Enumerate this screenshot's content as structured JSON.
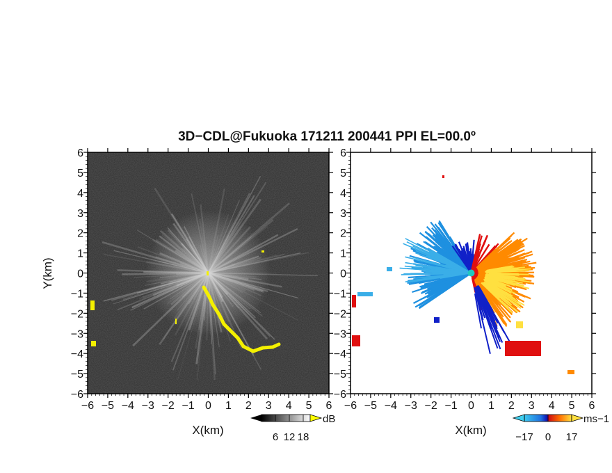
{
  "title": "3D−CDL@Fukuoka 171211 200441 PPI EL=00.0º",
  "chart_data": [
    {
      "type": "heatmap",
      "panel": "left",
      "quantity": "SNR",
      "xlabel": "X(km)",
      "ylabel": "Y(km)",
      "xlim": [
        -6,
        6
      ],
      "ylim": [
        -6,
        6
      ],
      "xticks": [
        "−6",
        "−5",
        "−4",
        "−3",
        "−2",
        "−1",
        "0",
        "1",
        "2",
        "3",
        "4",
        "5",
        "6"
      ],
      "yticks": [
        "6",
        "5",
        "4",
        "3",
        "2",
        "1",
        "0",
        "−1",
        "−2",
        "−3",
        "−4",
        "−5",
        "−6"
      ],
      "colorbar": {
        "unit": "dB",
        "ticks": [
          "6",
          "12",
          "18"
        ],
        "range": [
          0,
          21
        ]
      },
      "colors": {
        "background": "#2b2b2b",
        "rays": "#d8d8d8",
        "highlight": "#f4f000"
      }
    },
    {
      "type": "heatmap",
      "panel": "right",
      "quantity": "Doppler velocity",
      "xlabel": "X(km)",
      "xlim": [
        -6,
        6
      ],
      "ylim": [
        -6,
        6
      ],
      "xticks": [
        "−6",
        "−5",
        "−4",
        "−3",
        "−2",
        "−1",
        "0",
        "1",
        "2",
        "3",
        "4",
        "5",
        "6"
      ],
      "yticks": [
        "6",
        "5",
        "4",
        "3",
        "2",
        "1",
        "0",
        "−1",
        "−2",
        "−3",
        "−4",
        "−5",
        "−6"
      ],
      "colorbar": {
        "unit": "ms−1",
        "ticks": [
          "−17",
          "0",
          "17"
        ],
        "range": [
          -17,
          17
        ]
      },
      "colors": {
        "negative": "#1e90e0",
        "near_zero_neg": "#1020c8",
        "near_zero_pos": "#e01010",
        "positive": "#ff8a00",
        "far_positive": "#ffe040"
      }
    }
  ]
}
